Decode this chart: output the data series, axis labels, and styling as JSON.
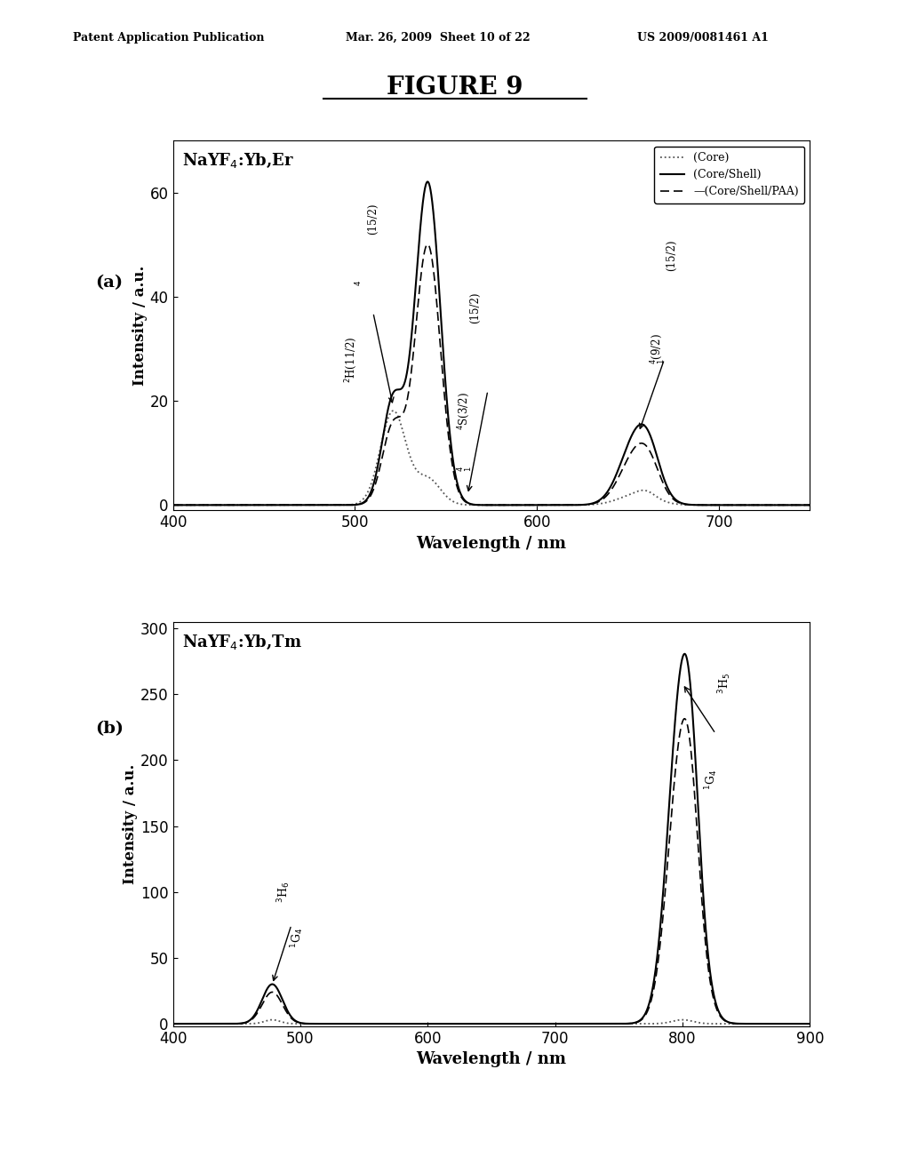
{
  "figure_title": "FIGURE 9",
  "header_left": "Patent Application Publication",
  "header_mid": "Mar. 26, 2009  Sheet 10 of 22",
  "header_right": "US 2009/0081461 A1",
  "panel_a": {
    "label": "(a)",
    "title": "NaYF$_4$:Yb,Er",
    "xlabel": "Wavelength / nm",
    "ylabel": "Intensity / a.u.",
    "xlim": [
      400,
      750
    ],
    "ylim": [
      -1,
      70
    ],
    "yticks": [
      0,
      20,
      40,
      60
    ],
    "xticks": [
      400,
      500,
      600,
      700
    ]
  },
  "panel_b": {
    "label": "(b)",
    "title": "NaYF$_4$:Yb,Tm",
    "xlabel": "Wavelength / nm",
    "ylabel": "Intensity / a.u.",
    "xlim": [
      400,
      900
    ],
    "ylim": [
      -2,
      305
    ],
    "yticks": [
      0,
      50,
      100,
      150,
      200,
      250,
      300
    ],
    "xticks": [
      400,
      500,
      600,
      700,
      800,
      900
    ]
  },
  "legend_labels": [
    "(Core)",
    "(Core/Shell)",
    "—(Core/Shell/PAA)"
  ],
  "line_color_core": "#555555",
  "line_color_shell": "#000000",
  "line_color_paa": "#000000"
}
